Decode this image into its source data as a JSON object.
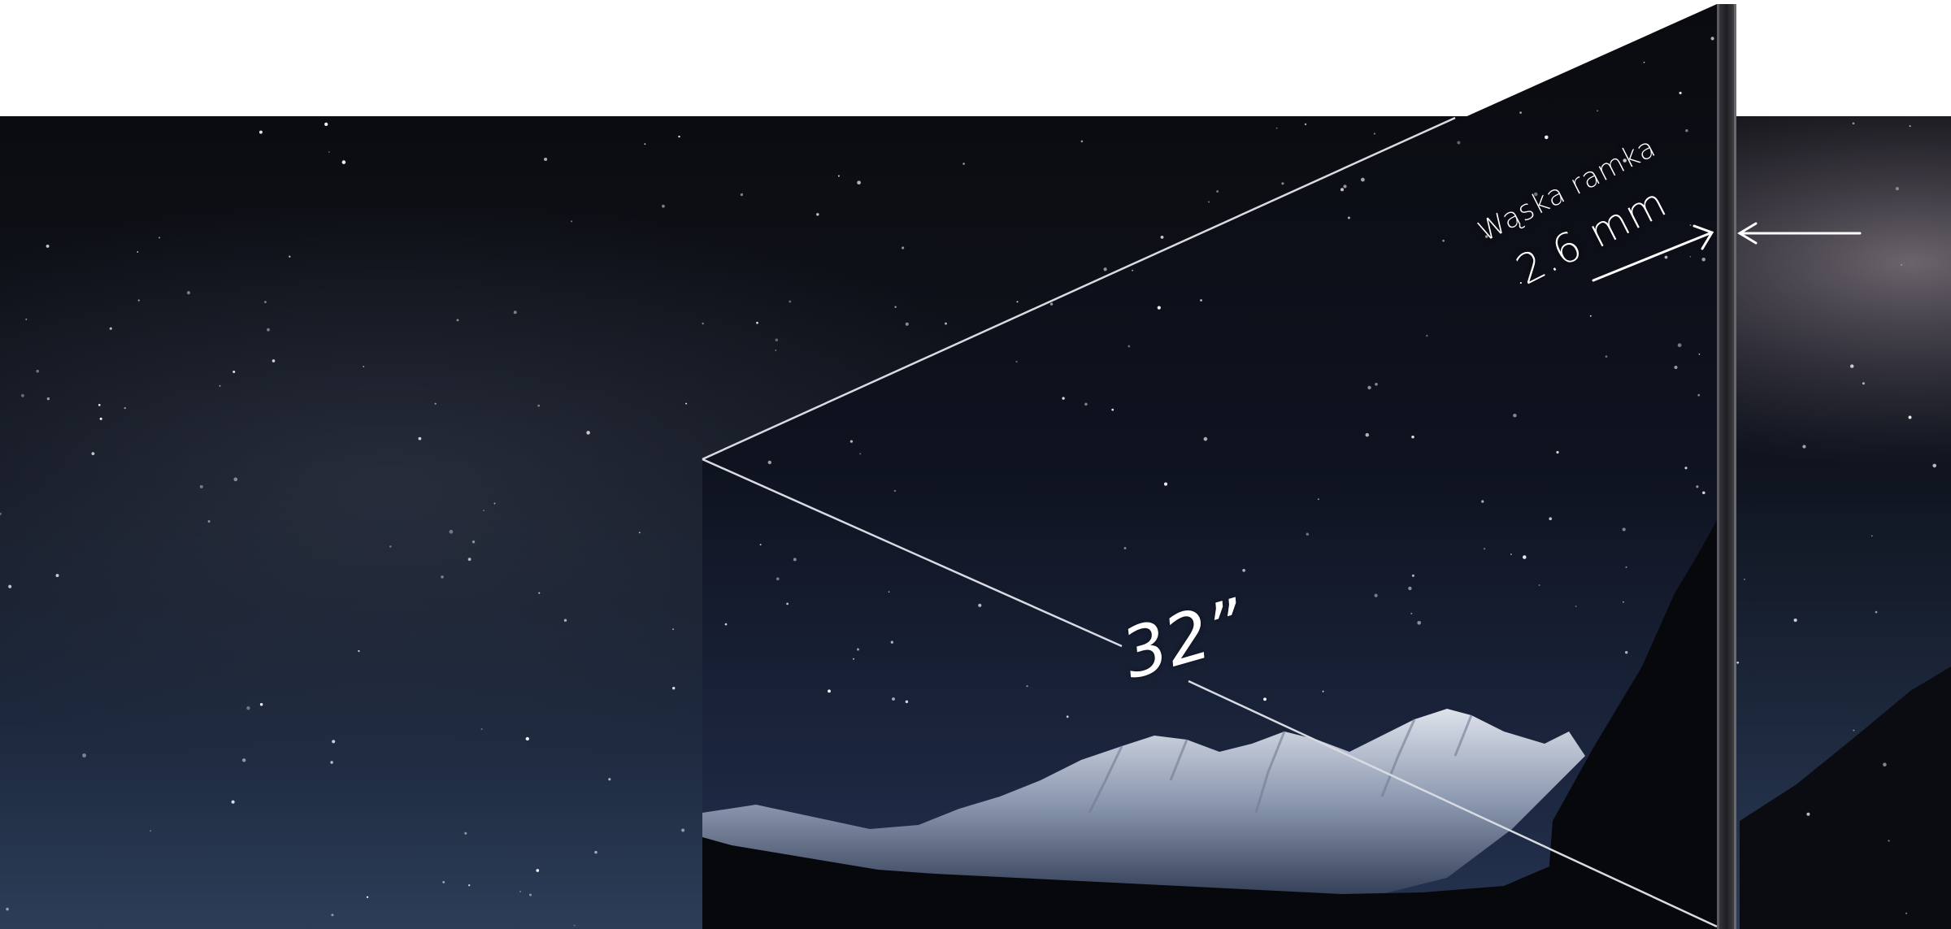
{
  "bezel": {
    "title": "Wąska ramka",
    "value": "2.6 mm"
  },
  "screen": {
    "diagonal": "32”"
  },
  "colors": {
    "background": "#ffffff",
    "sky_dark": "#0c0d12",
    "sky_blue": "#2c3b55",
    "text": "#ffffff",
    "bezel": "#2b2b2e"
  },
  "icons": [
    "arrow-icon",
    "mountain-icon",
    "star-icon"
  ]
}
